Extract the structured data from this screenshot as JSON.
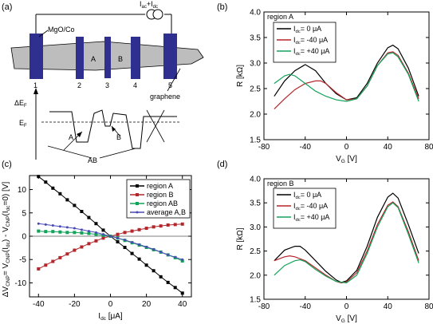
{
  "panels": {
    "a": {
      "label": "(a)",
      "source_label": "I",
      "source_sub_ac": "ac",
      "source_plus": "+I",
      "source_sub_dc": "dc",
      "mgo_label": "MgO/Co",
      "region_a": "A",
      "region_b": "B",
      "contacts": [
        "1",
        "2",
        "3",
        "4",
        "5"
      ],
      "graphene_label": "graphene",
      "delta_ef_label": "ΔE",
      "delta_ef_sub": "F",
      "ef_label": "E",
      "ef_sub": "F",
      "arrow_a": "A",
      "arrow_b": "B",
      "arrow_ab": "AB"
    },
    "b": {
      "label": "(b)",
      "title": "region A"
    },
    "c": {
      "label": "(c)"
    },
    "d": {
      "label": "(d)",
      "title": "region B"
    }
  },
  "colors": {
    "black": "#000000",
    "red": "#b3262b",
    "green": "#12a35a",
    "blue": "#4a4ab5",
    "contact": "#2e2f8e",
    "graphene": "#bdbdbd"
  },
  "chart_data": [
    {
      "panel": "b",
      "type": "line",
      "title": "region A",
      "xlabel": "V",
      "xlabel_sub": "G",
      "xlabel_unit": " [V]",
      "ylabel": "R [kΩ]",
      "xlim": [
        -80,
        80
      ],
      "ylim": [
        1.5,
        4.0
      ],
      "xticks": [
        -80,
        -40,
        0,
        40,
        80
      ],
      "yticks": [
        1.5,
        2.0,
        2.5,
        3.0,
        3.5,
        4.0
      ],
      "legend_position": "top-left",
      "series": [
        {
          "name": "I",
          "name_sub": "dc",
          "name_rest": "= 0 μA",
          "color": "#000000",
          "x": [
            -70,
            -60,
            -50,
            -40,
            -30,
            -20,
            -10,
            0,
            10,
            20,
            30,
            40,
            45,
            50,
            60,
            70
          ],
          "y": [
            2.35,
            2.65,
            2.85,
            2.97,
            2.85,
            2.6,
            2.4,
            2.28,
            2.32,
            2.6,
            3.0,
            3.3,
            3.35,
            3.28,
            2.9,
            2.35
          ]
        },
        {
          "name": "I",
          "name_sub": "dc",
          "name_rest": "= -40 μA",
          "color": "#b3262b",
          "x": [
            -70,
            -60,
            -50,
            -40,
            -30,
            -25,
            -20,
            -10,
            0,
            10,
            20,
            30,
            40,
            45,
            50,
            60,
            70
          ],
          "y": [
            2.1,
            2.3,
            2.48,
            2.6,
            2.65,
            2.65,
            2.6,
            2.42,
            2.28,
            2.3,
            2.55,
            2.95,
            3.2,
            3.22,
            3.15,
            2.8,
            2.3
          ]
        },
        {
          "name": "I",
          "name_sub": "dc",
          "name_rest": "= +40 μA",
          "color": "#12a35a",
          "x": [
            -70,
            -60,
            -55,
            -50,
            -40,
            -30,
            -20,
            -10,
            0,
            10,
            20,
            30,
            40,
            45,
            50,
            60,
            70
          ],
          "y": [
            2.6,
            2.75,
            2.78,
            2.75,
            2.6,
            2.45,
            2.35,
            2.28,
            2.25,
            2.3,
            2.55,
            2.95,
            3.18,
            3.2,
            3.12,
            2.78,
            2.25
          ]
        }
      ]
    },
    {
      "panel": "c",
      "type": "line",
      "xlabel": "I",
      "xlabel_sub": "dc",
      "xlabel_unit": " [μA]",
      "ylabel": "ΔV(CNP) = V(CNP)(I_dc) - V(CNP)(I_dc=0) [V]",
      "ylabel_parts": [
        "ΔV",
        "CNP",
        "= V",
        "CNP",
        "(I",
        "dc",
        ") - V",
        "CNP",
        "(I",
        "dc",
        "=0) [V]"
      ],
      "xlim": [
        -45,
        45
      ],
      "ylim": [
        -13,
        13
      ],
      "xticks": [
        -40,
        -20,
        0,
        20,
        40
      ],
      "yticks": [
        -10,
        -5,
        0,
        5,
        10
      ],
      "legend_position": "top-right",
      "series": [
        {
          "name": "region A",
          "color": "#000000",
          "marker": "square",
          "x": [
            -40,
            -36,
            -32,
            -28,
            -24,
            -20,
            -16,
            -12,
            -8,
            -4,
            0,
            4,
            8,
            12,
            16,
            20,
            24,
            28,
            32,
            36,
            40
          ],
          "y": [
            12.8,
            11.6,
            10.3,
            9.1,
            7.8,
            6.6,
            5.3,
            4.0,
            2.7,
            1.3,
            0,
            -1.2,
            -2.4,
            -3.7,
            -4.9,
            -6.2,
            -7.4,
            -8.7,
            -9.9,
            -11.0,
            -12.2
          ]
        },
        {
          "name": "region B",
          "color": "#b3262b",
          "marker": "square",
          "x": [
            -40,
            -36,
            -32,
            -28,
            -24,
            -20,
            -16,
            -12,
            -8,
            -4,
            0,
            4,
            8,
            12,
            16,
            20,
            24,
            28,
            32,
            36,
            40
          ],
          "y": [
            -7.0,
            -6.2,
            -5.4,
            -4.6,
            -3.8,
            -3.0,
            -2.3,
            -1.6,
            -1.0,
            -0.4,
            0,
            0.4,
            0.8,
            1.1,
            1.4,
            1.7,
            2.0,
            2.2,
            2.4,
            2.5,
            2.6
          ]
        },
        {
          "name": "region AB",
          "color": "#12a35a",
          "marker": "square",
          "x": [
            -40,
            -36,
            -32,
            -28,
            -24,
            -20,
            -16,
            -12,
            -8,
            -4,
            0,
            4,
            8,
            12,
            16,
            20,
            24,
            28,
            32,
            36,
            40
          ],
          "y": [
            1.1,
            1.0,
            1.0,
            0.9,
            0.8,
            0.8,
            0.7,
            0.6,
            0.4,
            0.2,
            0,
            -0.4,
            -0.9,
            -1.4,
            -1.9,
            -2.4,
            -2.9,
            -3.4,
            -4.0,
            -4.6,
            -5.3
          ]
        },
        {
          "name": "average A,B",
          "color": "#4a4ab5",
          "marker": "dot",
          "x": [
            -40,
            -36,
            -32,
            -28,
            -24,
            -20,
            -16,
            -12,
            -8,
            -4,
            0,
            4,
            8,
            12,
            16,
            20,
            24,
            28,
            32,
            36,
            40
          ],
          "y": [
            2.7,
            2.5,
            2.3,
            2.1,
            1.9,
            1.7,
            1.4,
            1.1,
            0.8,
            0.4,
            0,
            -0.4,
            -0.8,
            -1.3,
            -1.8,
            -2.3,
            -2.8,
            -3.4,
            -4.0,
            -4.5,
            -5.0
          ]
        }
      ]
    },
    {
      "panel": "d",
      "type": "line",
      "title": "region B",
      "xlabel": "V",
      "xlabel_sub": "G",
      "xlabel_unit": " [V]",
      "ylabel": "R [kΩ]",
      "xlim": [
        -80,
        80
      ],
      "ylim": [
        1.5,
        4.0
      ],
      "xticks": [
        -80,
        -40,
        0,
        40,
        80
      ],
      "yticks": [
        1.5,
        2.0,
        2.5,
        3.0,
        3.5,
        4.0
      ],
      "legend_position": "top-left",
      "series": [
        {
          "name": "I",
          "name_sub": "dc",
          "name_rest": "= 0 μA",
          "color": "#000000",
          "x": [
            -70,
            -60,
            -50,
            -45,
            -40,
            -30,
            -20,
            -10,
            -5,
            0,
            10,
            20,
            30,
            40,
            45,
            50,
            60,
            70
          ],
          "y": [
            2.3,
            2.52,
            2.6,
            2.6,
            2.52,
            2.3,
            2.08,
            1.9,
            1.85,
            1.88,
            2.1,
            2.6,
            3.2,
            3.62,
            3.7,
            3.6,
            3.05,
            2.45
          ]
        },
        {
          "name": "I",
          "name_sub": "dc",
          "name_rest": "= -40 μA",
          "color": "#b3262b",
          "x": [
            -70,
            -60,
            -55,
            -50,
            -40,
            -30,
            -20,
            -10,
            -5,
            0,
            10,
            20,
            30,
            40,
            45,
            50,
            60,
            70
          ],
          "y": [
            2.3,
            2.38,
            2.4,
            2.38,
            2.3,
            2.15,
            2.0,
            1.87,
            1.84,
            1.86,
            2.05,
            2.5,
            3.05,
            3.45,
            3.52,
            3.42,
            2.9,
            2.3
          ]
        },
        {
          "name": "I",
          "name_sub": "dc",
          "name_rest": "= +40 μA",
          "color": "#12a35a",
          "x": [
            -70,
            -60,
            -50,
            -45,
            -40,
            -30,
            -20,
            -10,
            0,
            10,
            20,
            30,
            40,
            45,
            50,
            60,
            70
          ],
          "y": [
            2.0,
            2.2,
            2.3,
            2.32,
            2.28,
            2.12,
            1.98,
            1.87,
            1.84,
            2.0,
            2.45,
            3.0,
            3.42,
            3.5,
            3.4,
            2.85,
            2.25
          ]
        }
      ]
    }
  ]
}
